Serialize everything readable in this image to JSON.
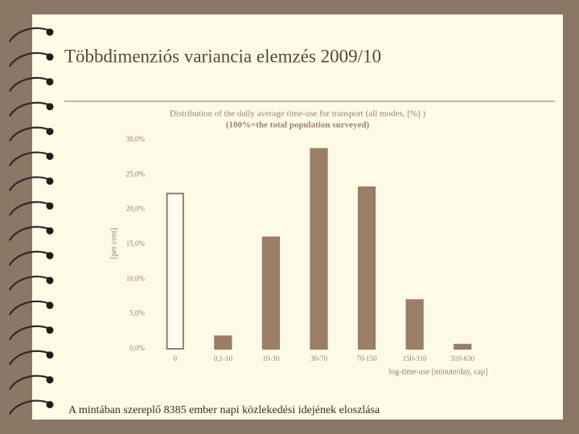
{
  "slide_title": "Többdimenziós variancia elemzés 2009/10",
  "caption": "A mintában szereplő 8385 ember napi közlekedési idejének eloszlása",
  "chart_data": {
    "type": "bar",
    "title": "Distribution of the daily average time-use for transport (all  modes, [%] )",
    "subtitle": "(100%=the total population surveyed)",
    "y_label": "[per cent]",
    "x_label": "log-time-use [minute/day, cap]",
    "categories": [
      "0",
      "0,1-10",
      "10-30",
      "30-70",
      "70-150",
      "150-310",
      "310-630"
    ],
    "values": [
      22.3,
      1.8,
      16.0,
      28.7,
      23.2,
      7.0,
      0.6
    ],
    "colors": [
      "#fffdf2",
      "#9b7e68",
      "#9b7e68",
      "#9b7e68",
      "#9b7e68",
      "#9b7e68",
      "#9b7e68"
    ],
    "stroke": "#9b7e68",
    "ylim": [
      0,
      30
    ],
    "yticks": [
      {
        "value": 0,
        "label": "0,0%"
      },
      {
        "value": 5,
        "label": "5,0%"
      },
      {
        "value": 10,
        "label": "10,0%"
      },
      {
        "value": 15,
        "label": "15,0%"
      },
      {
        "value": 20,
        "label": "20,0%"
      },
      {
        "value": 25,
        "label": "25,0%"
      },
      {
        "value": 30,
        "label": "30,0%"
      }
    ],
    "grid": false
  }
}
